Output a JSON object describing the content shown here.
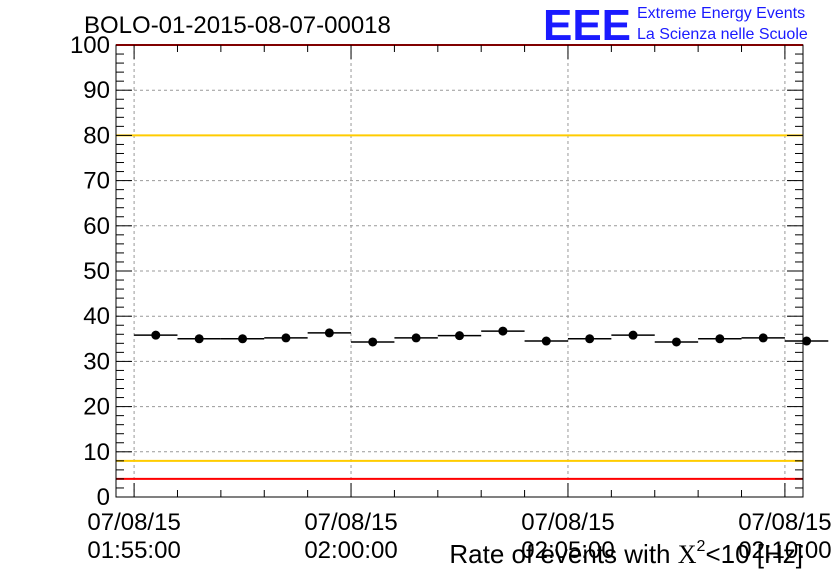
{
  "header": {
    "run_title": "BOLO-01-2015-08-07-00018",
    "logo_text": "EEE",
    "logo_line1": "Extreme Energy Events",
    "logo_line2": "La Scienza nelle Scuole"
  },
  "colors": {
    "logo_blue": "#1a1aff",
    "red_limit": "#ff0000",
    "yellow_limit": "#ffcc00",
    "marker": "#000000",
    "grid": "#999999"
  },
  "chart_data": {
    "type": "scatter",
    "title": "BOLO-01-2015-08-07-00018",
    "xlabel_prefix": "Rate of events with ",
    "xlabel_chi": "X",
    "xlabel_sup": "2",
    "xlabel_suffix": "<10 [Hz]",
    "ylabel": "",
    "ylim": [
      0,
      100
    ],
    "yticks": [
      0,
      10,
      20,
      30,
      40,
      50,
      60,
      70,
      80,
      90,
      100
    ],
    "grid": true,
    "x_time_minutes": [
      -4.5,
      -3.5,
      -2.5,
      -1.5,
      -0.5,
      0.5,
      1.5,
      2.5,
      3.5,
      4.5,
      5.5,
      6.5,
      7.5,
      8.5,
      9.5,
      10.5
    ],
    "values": [
      35.8,
      35.0,
      35.0,
      35.2,
      36.3,
      34.3,
      35.2,
      35.7,
      36.7,
      34.5,
      35.0,
      35.8,
      34.3,
      35.0,
      35.2,
      34.5
    ],
    "xtick_labels": [
      {
        "t": -5,
        "date": "07/08/15",
        "time": "01:55:00"
      },
      {
        "t": 0,
        "date": "07/08/15",
        "time": "02:00:00"
      },
      {
        "t": 5,
        "date": "07/08/15",
        "time": "02:05:00"
      },
      {
        "t": 10,
        "date": "07/08/15",
        "time": "02:10:00"
      }
    ],
    "reference_lines": [
      {
        "y": 4,
        "color": "red"
      },
      {
        "y": 8,
        "color": "yellow"
      },
      {
        "y": 80,
        "color": "yellow"
      },
      {
        "y": 100,
        "color": "red"
      }
    ]
  }
}
